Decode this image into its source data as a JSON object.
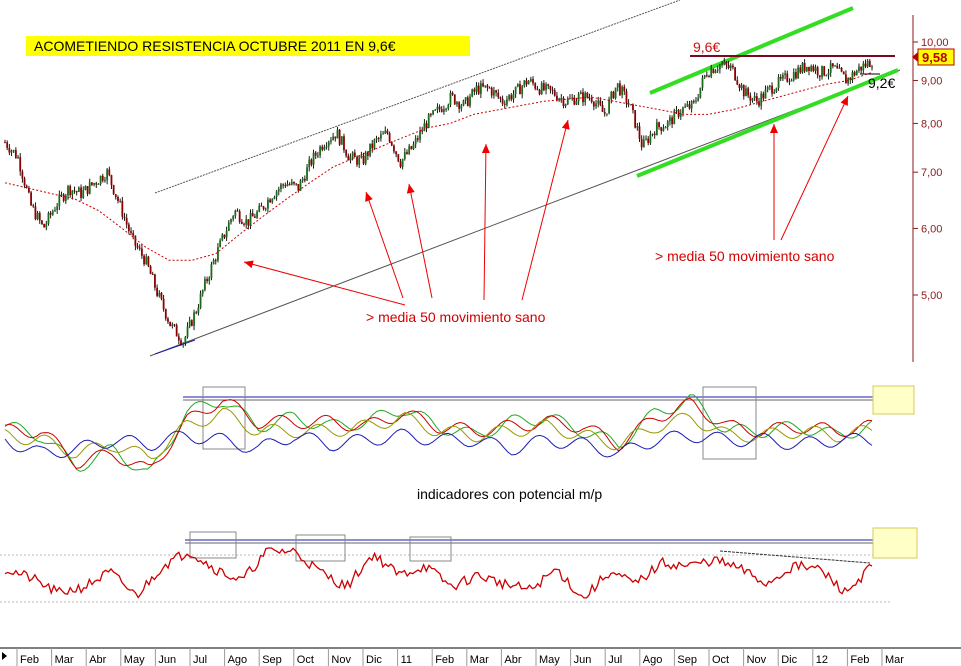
{
  "title": "ACOMETIENDO RESISTENCIA OCTUBRE 2011 EN 9,6€",
  "annotation_left": "> media 50 movimiento sano",
  "annotation_right": "> media 50 movimiento sano",
  "indicator_caption": "indicadores con potencial m/p",
  "resistance_label": "9,6€",
  "support_label": "9,2€",
  "last_price_label": "9,58",
  "colors": {
    "price": "#000000",
    "up_candle": "#1a6b1a",
    "down_candle": "#8b0000",
    "ma50": "#cc0000",
    "channel": "#555555",
    "green_channel": "#33dd22",
    "resistance": "#7a0a1e",
    "arrow": "#ee0000",
    "rsi": "#cc0000",
    "highlight_box": "#ffffc8"
  },
  "chart_data": [
    {
      "type": "line",
      "name": "price-panel",
      "scale": "log",
      "y_ticks": [
        "10,00",
        "9,00",
        "8,00",
        "7,00",
        "6,00",
        "5,00"
      ],
      "x_labels": [
        "Feb",
        "Mar",
        "Abr",
        "May",
        "Jun",
        "Jul",
        "Ago",
        "Sep",
        "Oct",
        "Nov",
        "Dic",
        "11",
        "Feb",
        "Mar",
        "Abr",
        "May",
        "Jun",
        "Jul",
        "Ago",
        "Sep",
        "Oct",
        "Nov",
        "Dic",
        "12",
        "Feb",
        "Mar"
      ],
      "price": [
        7.6,
        7.3,
        6.4,
        6.0,
        6.4,
        6.7,
        6.6,
        6.8,
        7.0,
        6.4,
        5.8,
        5.5,
        5.0,
        4.6,
        4.4,
        4.8,
        5.3,
        5.8,
        6.3,
        6.1,
        6.3,
        6.6,
        6.8,
        6.7,
        7.2,
        7.6,
        7.8,
        7.3,
        7.2,
        7.6,
        7.8,
        7.2,
        7.5,
        8.0,
        8.3,
        8.6,
        8.4,
        8.8,
        8.8,
        8.5,
        8.7,
        9.0,
        8.8,
        8.7,
        8.5,
        8.6,
        8.6,
        8.2,
        8.9,
        8.4,
        7.5,
        7.9,
        8.0,
        8.3,
        8.4,
        9.2,
        9.4,
        9.3,
        8.7,
        8.5,
        8.8,
        9.0,
        9.2,
        9.4,
        9.2,
        9.3,
        9.0,
        9.3,
        9.5
      ],
      "ma50": [
        6.8,
        6.7,
        6.6,
        6.5,
        6.3,
        6.0,
        5.7,
        5.5,
        5.5,
        5.6,
        5.9,
        6.2,
        6.5,
        6.8,
        7.1,
        7.3,
        7.5,
        7.7,
        7.9,
        8.0,
        8.2,
        8.3,
        8.4,
        8.5,
        8.55,
        8.6,
        8.5,
        8.4,
        8.3,
        8.2,
        8.2,
        8.3,
        8.45,
        8.6,
        8.75,
        8.9,
        9.0,
        9.2
      ],
      "resistance": 9.6,
      "support": 9.2,
      "last_price": 9.58
    },
    {
      "type": "line",
      "name": "oscillators-panel",
      "series": [
        {
          "color": "green",
          "values": [
            0.3,
            0.1,
            -0.6,
            -0.2,
            -0.8,
            0.6,
            0.9,
            0.3,
            0.5,
            0.3,
            0.4,
            0.7,
            0.3,
            0.1,
            0.4,
            0.5,
            0.2,
            -0.1,
            0.6,
            0.9,
            0.2,
            0.2,
            0.3,
            0.1,
            0.3
          ]
        },
        {
          "color": "red",
          "values": [
            0.2,
            0.2,
            -0.5,
            -0.3,
            -0.7,
            0.4,
            0.9,
            0.4,
            0.4,
            0.4,
            0.3,
            0.6,
            0.3,
            0.2,
            0.3,
            0.4,
            0.3,
            -0.1,
            0.5,
            0.8,
            0.3,
            0.2,
            0.3,
            0.2,
            0.3
          ]
        },
        {
          "color": "olive",
          "values": [
            0.1,
            0.0,
            -0.3,
            -0.1,
            -0.4,
            0.3,
            0.6,
            0.2,
            0.2,
            0.2,
            0.3,
            0.5,
            0.2,
            0.1,
            0.2,
            0.3,
            0.1,
            -0.1,
            0.3,
            0.5,
            0.1,
            0.1,
            0.2,
            0.1,
            0.2
          ]
        },
        {
          "color": "blue",
          "values": [
            0.0,
            -0.3,
            -0.2,
            0.0,
            -0.1,
            0.1,
            0.0,
            -0.2,
            0.1,
            -0.1,
            0.0,
            0.1,
            0.0,
            0.0,
            -0.2,
            0.0,
            -0.1,
            -0.3,
            0.0,
            0.1,
            0.0,
            0.0,
            -0.1,
            0.0,
            0.0
          ]
        }
      ]
    },
    {
      "type": "line",
      "name": "rsi-panel",
      "values": [
        0.3,
        0.0,
        -0.5,
        -0.3,
        0.2,
        -0.6,
        0.4,
        0.9,
        0.3,
        -0.1,
        0.9,
        0.9,
        0.2,
        -0.3,
        0.8,
        0.1,
        0.4,
        -0.3,
        0.1,
        -0.2,
        -0.4,
        0.3,
        -0.7,
        0.2,
        -0.2,
        0.5,
        0.4,
        0.6,
        0.3,
        -0.2,
        0.4,
        0.3,
        -0.5,
        0.4
      ]
    }
  ]
}
